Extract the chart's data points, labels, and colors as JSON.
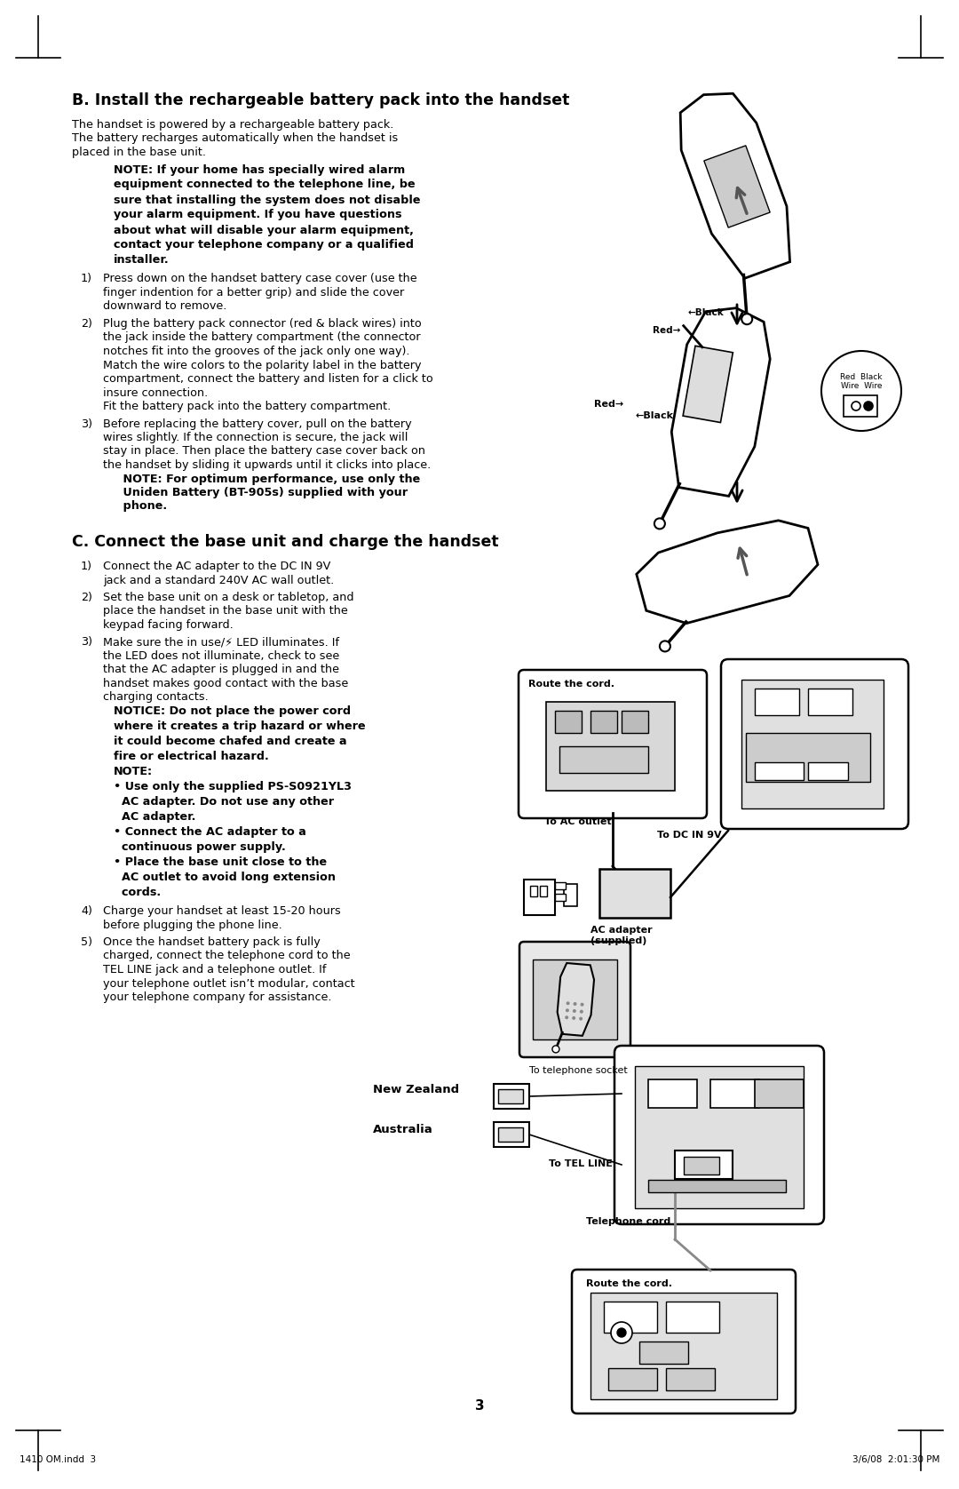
{
  "bg_color": "#ffffff",
  "text_color": "#000000",
  "page_number": "3",
  "footer_left": "1410 OM.indd  3",
  "footer_right": "3/6/08  2:01:30 PM",
  "section_b_title": "B. Install the rechargeable battery pack into the handset",
  "section_b_intro_line1": "The handset is powered by a rechargeable battery pack.",
  "section_b_intro_line2": "The battery recharges automatically when the handset is",
  "section_b_intro_line3": "placed in the base unit.",
  "section_b_note_lines": [
    "NOTE: If your home has specially wired alarm",
    "equipment connected to the telephone line, be",
    "sure that installing the system does not disable",
    "your alarm equipment. If you have questions",
    "about what will disable your alarm equipment,",
    "contact your telephone company or a qualified",
    "installer."
  ],
  "step_b1_num": "1)",
  "step_b1_lines": [
    "Press down on the handset battery case cover (use the",
    "finger indention for a better grip) and slide the cover",
    "downward to remove."
  ],
  "step_b2_num": "2)",
  "step_b2_lines": [
    "Plug the battery pack connector (red & black wires) into",
    "the jack inside the battery compartment (the connector",
    "notches fit into the grooves of the jack only one way).",
    "Match the wire colors to the polarity label in the battery",
    "compartment, connect the battery and listen for a click to",
    "insure connection.",
    "Fit the battery pack into the battery compartment."
  ],
  "step_b3_num": "3)",
  "step_b3_lines": [
    "Before replacing the battery cover, pull on the battery",
    "wires slightly. If the connection is secure, the jack will",
    "stay in place. Then place the battery case cover back on",
    "the handset by sliding it upwards until it clicks into place."
  ],
  "step_b3_note_lines": [
    "     NOTE: For optimum performance, use only the",
    "     Uniden Battery (BT-905s) supplied with your",
    "     phone."
  ],
  "section_c_title": "C. Connect the base unit and charge the handset",
  "step_c1_num": "1)",
  "step_c1_lines": [
    "Connect the AC adapter to the DC IN 9V",
    "jack and a standard 240V AC wall outlet."
  ],
  "step_c2_num": "2)",
  "step_c2_lines": [
    "Set the base unit on a desk or tabletop, and",
    "place the handset in the base unit with the",
    "keypad facing forward."
  ],
  "step_c3_num": "3)",
  "step_c3_lines": [
    "Make sure the in use/⚡ LED illuminates. If",
    "the LED does not illuminate, check to see",
    "that the AC adapter is plugged in and the",
    "handset makes good contact with the base",
    "charging contacts."
  ],
  "step_c3_notice_lines": [
    "NOTICE: Do not place the power cord",
    "where it creates a trip hazard or where",
    "it could become chafed and create a",
    "fire or electrical hazard."
  ],
  "step_c3_note_lines": [
    "NOTE:",
    "• Use only the supplied PS-S0921YL3",
    "  AC adapter. Do not use any other",
    "  AC adapter.",
    "• Connect the AC adapter to a",
    "  continuous power supply.",
    "• Place the base unit close to the",
    "  AC outlet to avoid long extension",
    "  cords."
  ],
  "step_c4_num": "4)",
  "step_c4_lines": [
    "Charge your handset at least 15-20 hours",
    "before plugging the phone line."
  ],
  "step_c5_num": "5)",
  "step_c5_lines": [
    "Once the handset battery pack is fully",
    "charged, connect the telephone cord to the",
    "TEL LINE jack and a telephone outlet. If",
    "your telephone outlet isn’t modular, contact",
    "your telephone company for assistance."
  ],
  "diag_b1_arrow_label": "",
  "diag_b2_red_label": "Red",
  "diag_b2_black_label": "Black",
  "diag_b2_wire_label": "Red  Black\nWire  Wire",
  "diag_c1_route": "Route the cord.",
  "diag_c1_ac_outlet": "To AC outlet",
  "diag_c1_dc": "To DC IN 9V",
  "diag_c1_adapter": "AC adapter\n(supplied)",
  "diag_c3_tel_socket": "To telephone socket",
  "diag_c3_tel_line": "To TEL LINE",
  "diag_c3_tel_cord": "Telephone cord",
  "diag_c4_route": "Route the cord.",
  "nz_label": "New Zealand",
  "au_label": "Australia"
}
